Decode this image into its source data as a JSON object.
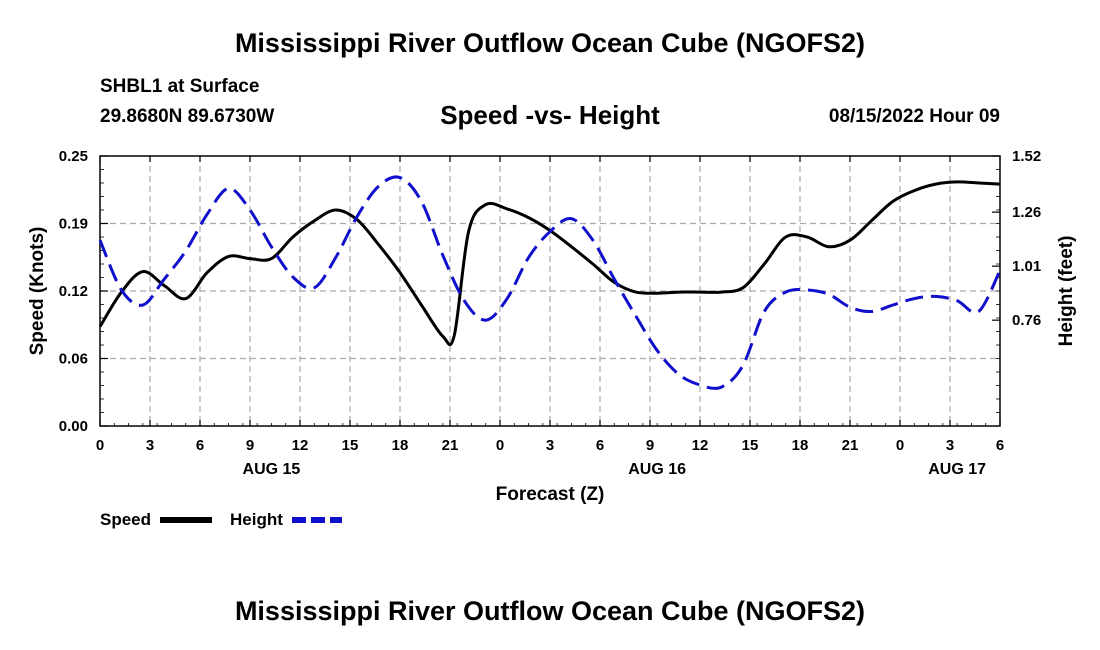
{
  "header": {
    "title_top": "Mississippi River Outflow Ocean Cube (NGOFS2)",
    "station": "SHBL1 at Surface",
    "coords": "29.8680N  89.6730W",
    "subtitle": "Speed -vs- Height",
    "datehour": "08/15/2022 Hour 09",
    "title_bottom": "Mississippi River Outflow Ocean Cube (NGOFS2)"
  },
  "legend": {
    "speed_label": "Speed",
    "height_label": "Height"
  },
  "colors": {
    "speed": "#000000",
    "height": "#1010cc",
    "grid": "#aaaaaa"
  },
  "chart_data": {
    "type": "line",
    "title": "Speed -vs- Height",
    "xlabel": "Forecast (Z)",
    "ylabel": "Speed (Knots)",
    "y2label": "Height (feet)",
    "x_range_hours": [
      0,
      63
    ],
    "x_ticks": [
      "0",
      "3",
      "6",
      "9",
      "12",
      "15",
      "18",
      "21",
      "0",
      "3",
      "6",
      "9",
      "12",
      "15",
      "18",
      "21",
      "0",
      "3",
      "6"
    ],
    "day_labels": [
      {
        "label": "AUG 15",
        "hour": 12
      },
      {
        "label": "AUG 16",
        "hour": 39
      },
      {
        "label": "AUG 17",
        "hour": 60
      }
    ],
    "ylim": [
      0,
      0.25
    ],
    "yticks": [
      "0.00",
      "0.06",
      "0.12",
      "0.19",
      "0.25"
    ],
    "y2lim": [
      0.27,
      1.52
    ],
    "y2ticks": [
      "0.76",
      "1.01",
      "1.26",
      "1.52"
    ],
    "series": [
      {
        "name": "Speed",
        "axis": "left",
        "style": "solid",
        "x": [
          0,
          1.5,
          3,
          4.5,
          6,
          7.5,
          9,
          10.5,
          12,
          13.5,
          15,
          16.5,
          18,
          19.5,
          21,
          22.5,
          24,
          24.8,
          25.8,
          27,
          28.5,
          30,
          31.5,
          33,
          34.5,
          36,
          37.5,
          39,
          40.5,
          42,
          43.5,
          45,
          46.5,
          48,
          49.5,
          51,
          52.5,
          54,
          55.5,
          57,
          58.5,
          60,
          61.5,
          63
        ],
        "values": [
          0.092,
          0.124,
          0.143,
          0.13,
          0.118,
          0.142,
          0.157,
          0.155,
          0.155,
          0.175,
          0.19,
          0.2,
          0.191,
          0.168,
          0.142,
          0.112,
          0.083,
          0.084,
          0.18,
          0.205,
          0.201,
          0.193,
          0.181,
          0.166,
          0.15,
          0.133,
          0.124,
          0.123,
          0.124,
          0.124,
          0.124,
          0.128,
          0.15,
          0.175,
          0.175,
          0.166,
          0.172,
          0.19,
          0.208,
          0.218,
          0.224,
          0.226,
          0.225,
          0.224
        ]
      },
      {
        "name": "Height",
        "axis": "right",
        "style": "dashed",
        "x": [
          0,
          1.5,
          3,
          4.5,
          6,
          7.5,
          9,
          10.5,
          12,
          13.5,
          15,
          16.5,
          18,
          19.5,
          21,
          22.5,
          24,
          25.5,
          27,
          28.5,
          30,
          31.5,
          33,
          34.5,
          36,
          37.5,
          39,
          40.5,
          42,
          43.5,
          45,
          46.5,
          48,
          49.5,
          51,
          52.5,
          54,
          55.5,
          57,
          58.5,
          60,
          61.5,
          63
        ],
        "values": [
          1.13,
          0.9,
          0.83,
          0.95,
          1.08,
          1.25,
          1.37,
          1.27,
          1.1,
          0.96,
          0.91,
          1.05,
          1.24,
          1.38,
          1.42,
          1.31,
          1.06,
          0.85,
          0.76,
          0.86,
          1.05,
          1.17,
          1.23,
          1.13,
          0.95,
          0.78,
          0.62,
          0.51,
          0.46,
          0.45,
          0.55,
          0.8,
          0.89,
          0.9,
          0.88,
          0.82,
          0.8,
          0.83,
          0.86,
          0.87,
          0.85,
          0.8,
          0.99
        ]
      }
    ]
  }
}
